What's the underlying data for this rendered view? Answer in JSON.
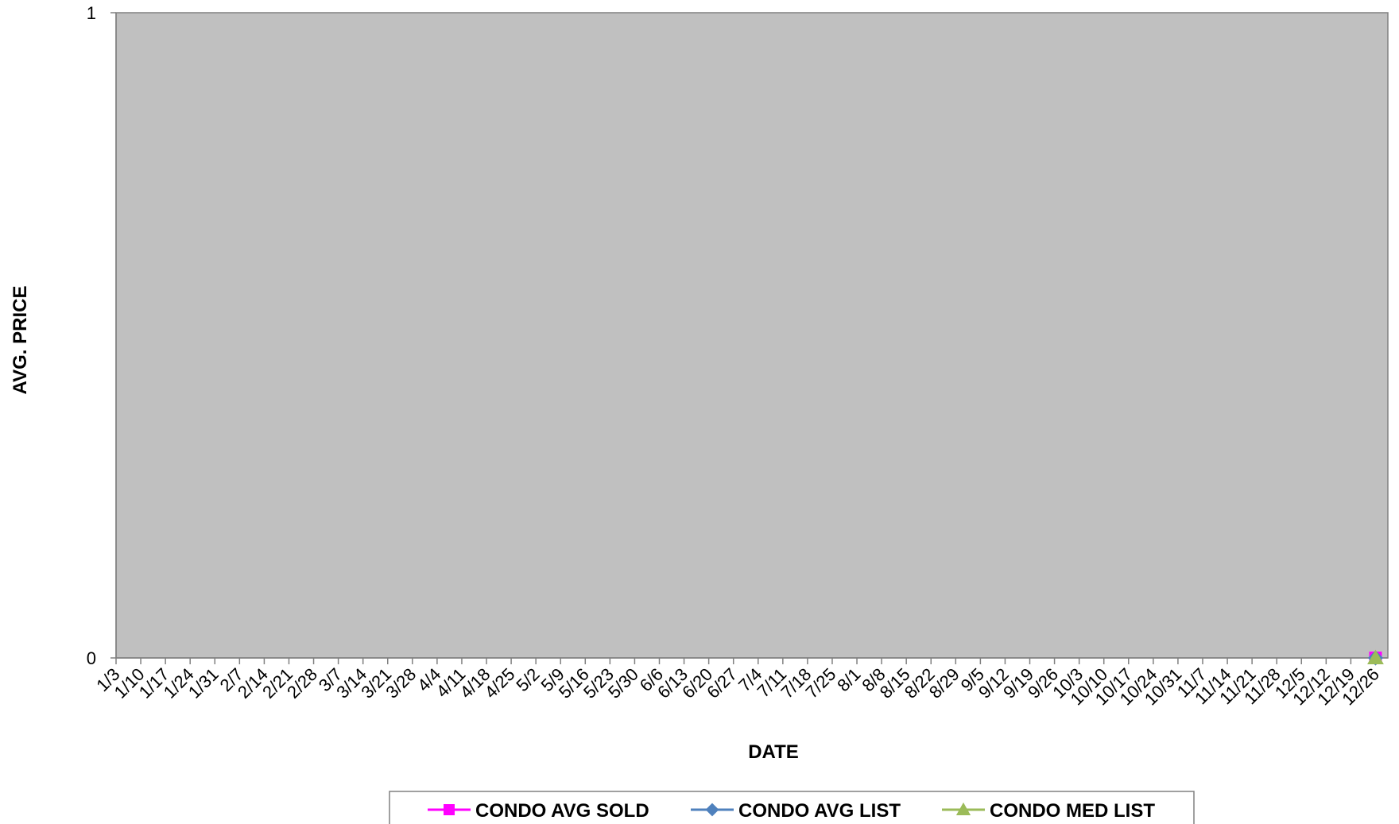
{
  "chart_data": {
    "type": "line",
    "title": "",
    "xlabel": "DATE",
    "ylabel": "AVG. PRICE",
    "ylim": [
      0,
      1
    ],
    "yticks": [
      0,
      1
    ],
    "categories": [
      "1/3",
      "1/10",
      "1/17",
      "1/24",
      "1/31",
      "2/7",
      "2/14",
      "2/21",
      "2/28",
      "3/7",
      "3/14",
      "3/21",
      "3/28",
      "4/4",
      "4/11",
      "4/18",
      "4/25",
      "5/2",
      "5/9",
      "5/16",
      "5/23",
      "5/30",
      "6/6",
      "6/13",
      "6/20",
      "6/27",
      "7/4",
      "7/11",
      "7/18",
      "7/25",
      "8/1",
      "8/8",
      "8/15",
      "8/22",
      "8/29",
      "9/5",
      "9/12",
      "9/19",
      "9/26",
      "10/3",
      "10/10",
      "10/17",
      "10/24",
      "10/31",
      "11/7",
      "11/14",
      "11/21",
      "11/28",
      "12/5",
      "12/12",
      "12/19",
      "12/26"
    ],
    "series": [
      {
        "name": "CONDO AVG SOLD",
        "color": "#ff00ff",
        "marker": "square",
        "points": [
          {
            "x": "12/26",
            "y": 0
          }
        ]
      },
      {
        "name": "CONDO AVG LIST",
        "color": "#4f81bd",
        "marker": "diamond",
        "points": [
          {
            "x": "12/26",
            "y": 0
          }
        ]
      },
      {
        "name": "CONDO MED LIST",
        "color": "#9bbb59",
        "marker": "triangle",
        "points": [
          {
            "x": "12/26",
            "y": 0
          }
        ]
      }
    ],
    "plot_background": "#c0c0c0",
    "grid": false,
    "legend_position": "bottom"
  }
}
